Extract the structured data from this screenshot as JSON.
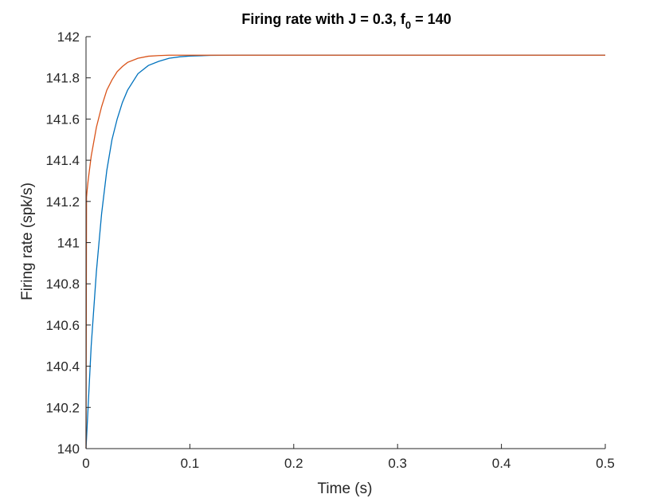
{
  "chart_data": {
    "type": "line",
    "title": {
      "prefix": "Firing rate with J = 0.3, f",
      "subscript": "0",
      "suffix": " = 140"
    },
    "xlabel": "Time (s)",
    "ylabel": "Firing rate (spk/s)",
    "xlim": [
      0,
      0.5
    ],
    "ylim": [
      140,
      142
    ],
    "xticks": [
      0,
      0.1,
      0.2,
      0.3,
      0.4,
      0.5
    ],
    "xtick_labels": [
      "0",
      "0.1",
      "0.2",
      "0.3",
      "0.4",
      "0.5"
    ],
    "yticks": [
      140,
      140.2,
      140.4,
      140.6,
      140.8,
      141,
      141.2,
      141.4,
      141.6,
      141.8,
      142
    ],
    "ytick_labels": [
      "140",
      "140.2",
      "140.4",
      "140.6",
      "140.8",
      "141",
      "141.2",
      "141.4",
      "141.6",
      "141.8",
      "142"
    ],
    "grid": false,
    "series": [
      {
        "color": "#0072BD",
        "x": [
          0,
          0.002,
          0.005,
          0.01,
          0.015,
          0.02,
          0.025,
          0.03,
          0.035,
          0.04,
          0.05,
          0.06,
          0.07,
          0.08,
          0.09,
          0.1,
          0.12,
          0.15,
          0.2,
          0.3,
          0.4,
          0.5
        ],
        "y": [
          140.0,
          140.2,
          140.5,
          140.86,
          141.14,
          141.35,
          141.5,
          141.6,
          141.68,
          141.74,
          141.82,
          141.86,
          141.88,
          141.895,
          141.902,
          141.906,
          141.909,
          141.91,
          141.91,
          141.91,
          141.91,
          141.91
        ]
      },
      {
        "color": "#D95319",
        "x": [
          0,
          0.0005,
          0.001,
          0.002,
          0.005,
          0.01,
          0.015,
          0.02,
          0.025,
          0.03,
          0.035,
          0.04,
          0.05,
          0.06,
          0.07,
          0.08,
          0.1,
          0.15,
          0.2,
          0.3,
          0.4,
          0.5
        ],
        "y": [
          140.0,
          141.22,
          141.25,
          141.3,
          141.42,
          141.56,
          141.66,
          141.74,
          141.79,
          141.83,
          141.855,
          141.875,
          141.895,
          141.905,
          141.908,
          141.91,
          141.91,
          141.91,
          141.91,
          141.91,
          141.91,
          141.91
        ]
      }
    ]
  }
}
